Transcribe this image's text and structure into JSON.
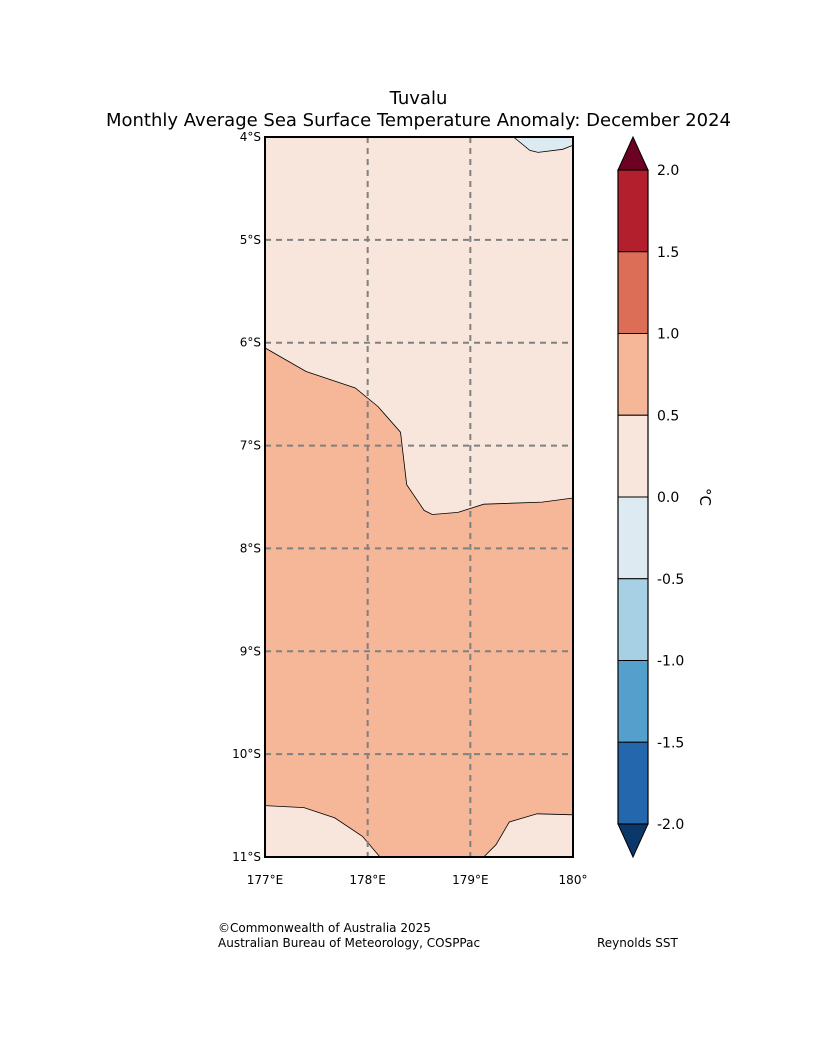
{
  "title": {
    "region": "Tuvalu",
    "subtitle": "Monthly Average Sea Surface Temperature Anomaly: December 2024"
  },
  "chart_data": {
    "type": "filled-contour-map",
    "extent": {
      "lon": [
        177,
        180
      ],
      "lat": [
        -11,
        -4
      ]
    },
    "lat_ticks": [
      {
        "value": -4,
        "label": "4°S"
      },
      {
        "value": -5,
        "label": "5°S"
      },
      {
        "value": -6,
        "label": "6°S"
      },
      {
        "value": -7,
        "label": "7°S"
      },
      {
        "value": -8,
        "label": "8°S"
      },
      {
        "value": -9,
        "label": "9°S"
      },
      {
        "value": -10,
        "label": "10°S"
      },
      {
        "value": -11,
        "label": "11°S"
      }
    ],
    "lon_ticks": [
      {
        "value": 177,
        "label": "177°E"
      },
      {
        "value": 178,
        "label": "178°E"
      },
      {
        "value": 179,
        "label": "179°E"
      },
      {
        "value": 180,
        "label": "180°"
      }
    ],
    "gridlines": true,
    "regions": [
      {
        "name": "north",
        "range": "0.0 to 0.5",
        "color": "#f8e6dc",
        "boundary": [
          [
            177,
            -6.05
          ],
          [
            177.4,
            -6.28
          ],
          [
            177.88,
            -6.44
          ],
          [
            178.1,
            -6.62
          ],
          [
            178.32,
            -6.87
          ],
          [
            178.38,
            -7.38
          ],
          [
            178.55,
            -7.63
          ],
          [
            178.63,
            -7.67
          ],
          [
            178.88,
            -7.65
          ],
          [
            179.13,
            -7.57
          ],
          [
            179.7,
            -7.55
          ],
          [
            180,
            -7.51
          ]
        ]
      },
      {
        "name": "south",
        "range": "0.5 to 1.0",
        "color": "#f5b798"
      },
      {
        "name": "south-west-patch",
        "range": "0.0 to 0.5",
        "color": "#f8e6dc",
        "boundary": [
          [
            177,
            -10.5
          ],
          [
            177.38,
            -10.52
          ],
          [
            177.68,
            -10.62
          ],
          [
            177.95,
            -10.8
          ],
          [
            178.12,
            -11
          ]
        ]
      },
      {
        "name": "south-east-patch",
        "range": "0.0 to 0.5",
        "color": "#f8e6dc",
        "boundary": [
          [
            179.13,
            -11
          ],
          [
            179.25,
            -10.88
          ],
          [
            179.38,
            -10.66
          ],
          [
            179.65,
            -10.58
          ],
          [
            180,
            -10.59
          ]
        ]
      },
      {
        "name": "north-east-patch",
        "range": "-0.5 to 0.0",
        "color": "#deeaf2",
        "boundary": [
          [
            179.42,
            -4
          ],
          [
            179.58,
            -4.13
          ],
          [
            179.66,
            -4.15
          ],
          [
            179.9,
            -4.12
          ],
          [
            180,
            -4.08
          ]
        ]
      }
    ],
    "colorbar": {
      "label": "°C",
      "levels": [
        "2.0",
        "1.5",
        "1.0",
        "0.5",
        "0.0",
        "-0.5",
        "-1.0",
        "-1.5",
        "-2.0"
      ],
      "colors": [
        "#b31f2d",
        "#dc6e58",
        "#f5b798",
        "#f8e6dc",
        "#deeaf2",
        "#a8d0e4",
        "#559fcd",
        "#2567ad"
      ],
      "over_color": "#6c0124",
      "under_color": "#0b3869"
    }
  },
  "footer": {
    "copyright": "©Commonwealth of Australia 2025",
    "agency": "Australian Bureau of Meteorology, COSPPac",
    "source": "Reynolds SST"
  }
}
